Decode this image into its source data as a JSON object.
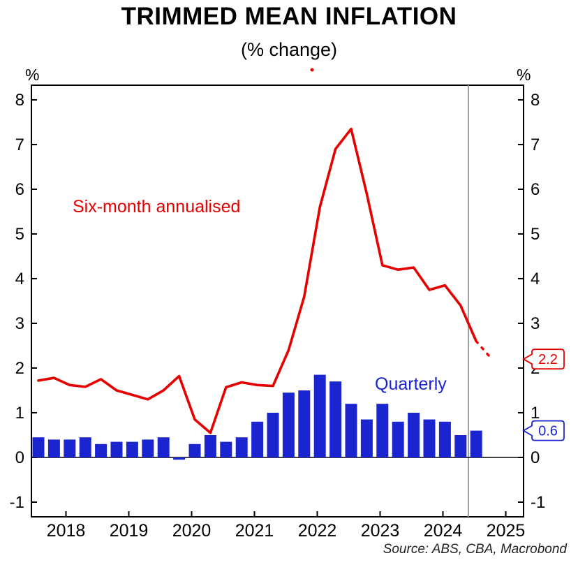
{
  "page": {
    "title": "TRIMMED MEAN INFLATION",
    "subtitle": "(% change)",
    "source": "Source: ABS, CBA, Macrobond",
    "y_axis_unit_left": "%",
    "y_axis_unit_right": "%"
  },
  "chart_data": {
    "type": "bar",
    "combo": "bar+line",
    "title": "TRIMMED MEAN INFLATION",
    "subtitle": "(% change)",
    "ylabel": "%",
    "ylim": [
      -1.33,
      8.33
    ],
    "y_ticks": [
      8,
      7,
      6,
      5,
      4,
      3,
      2,
      1,
      0,
      -1
    ],
    "x_tick_labels": [
      "2018",
      "2019",
      "2020",
      "2021",
      "2022",
      "2023",
      "2024",
      "2025"
    ],
    "grid": "off",
    "legend_position": "inline text labels",
    "categories": [
      "2017-Q3",
      "2017-Q4",
      "2018-Q1",
      "2018-Q2",
      "2018-Q3",
      "2018-Q4",
      "2019-Q1",
      "2019-Q2",
      "2019-Q3",
      "2019-Q4",
      "2020-Q1",
      "2020-Q2",
      "2020-Q3",
      "2020-Q4",
      "2021-Q1",
      "2021-Q2",
      "2021-Q3",
      "2021-Q4",
      "2022-Q1",
      "2022-Q2",
      "2022-Q3",
      "2022-Q4",
      "2023-Q1",
      "2023-Q2",
      "2023-Q3",
      "2023-Q4",
      "2024-Q1",
      "2024-Q2",
      "2024-Q3"
    ],
    "series": [
      {
        "name": "Six-month annualised",
        "type": "line",
        "color": "#e60000",
        "values": [
          1.72,
          1.78,
          1.62,
          1.58,
          1.75,
          1.5,
          1.4,
          1.3,
          1.5,
          1.82,
          0.85,
          0.55,
          1.57,
          1.68,
          1.62,
          1.6,
          2.4,
          3.6,
          5.6,
          6.9,
          7.35,
          5.9,
          4.3,
          4.2,
          4.25,
          3.75,
          3.85,
          3.4,
          2.6
        ],
        "forecast": {
          "category": "2024-Q4",
          "value": 2.2,
          "style": "dashed"
        }
      },
      {
        "name": "Quarterly",
        "type": "bar",
        "color": "#1b25cf",
        "values": [
          0.45,
          0.4,
          0.4,
          0.45,
          0.3,
          0.35,
          0.35,
          0.4,
          0.45,
          -0.05,
          0.3,
          0.5,
          0.35,
          0.45,
          0.8,
          1.0,
          1.45,
          1.5,
          1.85,
          1.7,
          1.2,
          0.85,
          1.2,
          0.8,
          1.0,
          0.85,
          0.8,
          0.5,
          0.6
        ]
      }
    ],
    "annotations": [
      {
        "type": "callout",
        "text": "2.2",
        "value": 2.2,
        "color": "#e60000"
      },
      {
        "type": "callout",
        "text": "0.6",
        "value": 0.6,
        "color": "#1b25cf"
      },
      {
        "type": "dot",
        "color": "#e60000"
      }
    ],
    "forecast_divider": {
      "style": "vertical grey line",
      "position_after": "2024-Q3"
    }
  }
}
